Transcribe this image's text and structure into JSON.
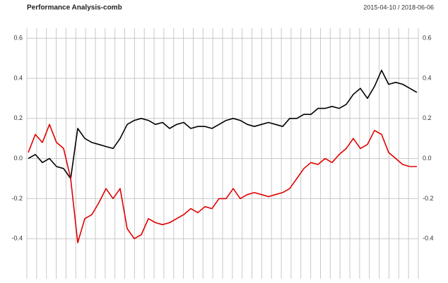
{
  "chart_data": {
    "type": "line",
    "title": "Performance Analysis-comb",
    "subtitle": "2015-04-10 / 2018-06-06",
    "ylim": [
      -0.6,
      0.65
    ],
    "yticks": [
      -0.4,
      -0.2,
      {
        "value": 0,
        "label": "0.0"
      },
      0.2,
      0.4,
      0.6
    ],
    "grid": true,
    "series": [
      {
        "color": "#000000",
        "values": [
          0.0,
          0.02,
          -0.02,
          0.0,
          -0.04,
          -0.05,
          -0.1,
          0.15,
          0.1,
          0.08,
          0.07,
          0.06,
          0.05,
          0.1,
          0.17,
          0.19,
          0.2,
          0.19,
          0.17,
          0.18,
          0.15,
          0.17,
          0.18,
          0.15,
          0.16,
          0.16,
          0.15,
          0.17,
          0.19,
          0.2,
          0.19,
          0.17,
          0.16,
          0.17,
          0.18,
          0.17,
          0.16,
          0.2,
          0.2,
          0.22,
          0.22,
          0.25,
          0.25,
          0.26,
          0.25,
          0.27,
          0.32,
          0.35,
          0.3,
          0.36,
          0.44,
          0.37,
          0.38,
          0.37,
          0.35,
          0.33
        ]
      },
      {
        "color": "#e00000",
        "values": [
          0.03,
          0.12,
          0.08,
          0.17,
          0.08,
          0.05,
          -0.1,
          -0.42,
          -0.3,
          -0.28,
          -0.22,
          -0.15,
          -0.2,
          -0.15,
          -0.35,
          -0.4,
          -0.38,
          -0.3,
          -0.32,
          -0.33,
          -0.32,
          -0.3,
          -0.28,
          -0.25,
          -0.27,
          -0.24,
          -0.25,
          -0.2,
          -0.2,
          -0.15,
          -0.2,
          -0.18,
          -0.17,
          -0.18,
          -0.19,
          -0.18,
          -0.17,
          -0.15,
          -0.1,
          -0.05,
          -0.02,
          -0.03,
          0.0,
          -0.02,
          0.02,
          0.05,
          0.1,
          0.05,
          0.07,
          0.14,
          0.12,
          0.03,
          0.0,
          -0.03,
          -0.04,
          -0.04
        ]
      }
    ]
  }
}
